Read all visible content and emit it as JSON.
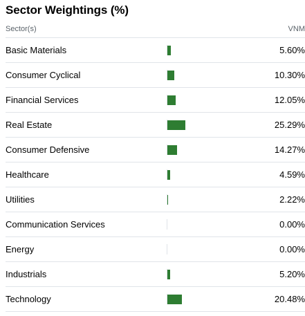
{
  "title": "Sector Weightings (%)",
  "header": {
    "sector_label": "Sector(s)",
    "fund_label": "VNM"
  },
  "colors": {
    "bar": "#2e7d32"
  },
  "rows": [
    {
      "name": "Basic Materials",
      "value": "5.60%",
      "pct": 5.6
    },
    {
      "name": "Consumer Cyclical",
      "value": "10.30%",
      "pct": 10.3
    },
    {
      "name": "Financial Services",
      "value": "12.05%",
      "pct": 12.05
    },
    {
      "name": "Real Estate",
      "value": "25.29%",
      "pct": 25.29
    },
    {
      "name": "Consumer Defensive",
      "value": "14.27%",
      "pct": 14.27
    },
    {
      "name": "Healthcare",
      "value": "4.59%",
      "pct": 4.59
    },
    {
      "name": "Utilities",
      "value": "2.22%",
      "pct": 2.22
    },
    {
      "name": "Communication Services",
      "value": "0.00%",
      "pct": 0.0
    },
    {
      "name": "Energy",
      "value": "0.00%",
      "pct": 0.0
    },
    {
      "name": "Industrials",
      "value": "5.20%",
      "pct": 5.2
    },
    {
      "name": "Technology",
      "value": "20.48%",
      "pct": 20.48
    }
  ]
}
